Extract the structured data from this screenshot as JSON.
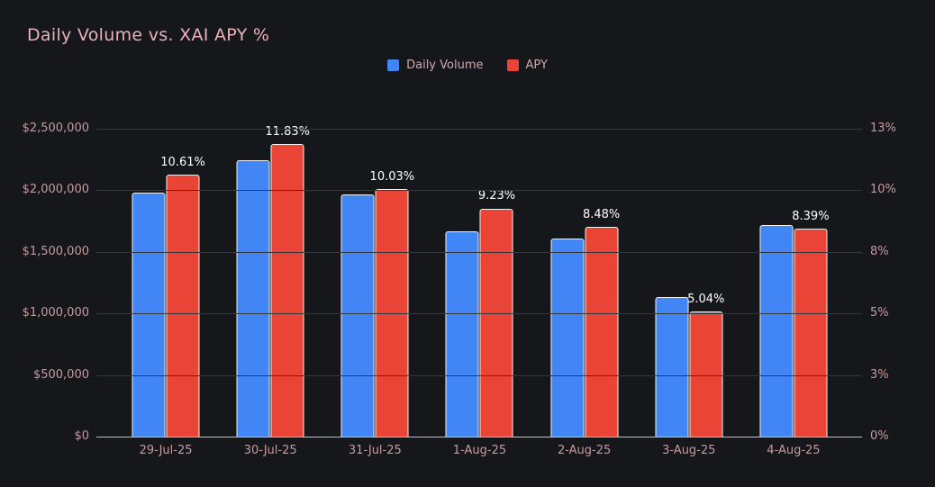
{
  "chart_data": {
    "type": "bar",
    "title": "Daily Volume vs. XAI APY %",
    "categories": [
      "29-Jul-25",
      "30-Jul-25",
      "31-Jul-25",
      "1-Aug-25",
      "2-Aug-25",
      "3-Aug-25",
      "4-Aug-25"
    ],
    "series": [
      {
        "name": "Daily Volume",
        "axis": "left",
        "color": "#4285f4",
        "values": [
          1975000,
          2235000,
          1960000,
          1660000,
          1600000,
          1125000,
          1710000
        ]
      },
      {
        "name": "APY",
        "axis": "right",
        "color": "#e94435",
        "values": [
          10.61,
          11.83,
          10.03,
          9.23,
          8.48,
          5.04,
          8.39
        ],
        "data_labels": [
          "10.61%",
          "11.83%",
          "10.03%",
          "9.23%",
          "8.48%",
          "5.04%",
          "8.39%"
        ]
      }
    ],
    "left_axis": {
      "min": 0,
      "max": 2500000,
      "tick_labels_bottom_to_top": [
        "$0",
        "$500,000",
        "$1,000,000",
        "$1,500,000",
        "$2,000,000",
        "$2,500,000"
      ]
    },
    "right_axis": {
      "min": 0,
      "max": 12.5,
      "tick_labels_bottom_to_top": [
        "0%",
        "3%",
        "5%",
        "8%",
        "10%",
        "13%"
      ]
    },
    "grid": true,
    "legend_position": "top-center",
    "colors": {
      "background": "#16171a",
      "title_text": "#e7b2b8",
      "axis_label_text": "#c49ba1",
      "grid_line": "#36373c",
      "axis_line": "#c2c2c6",
      "data_label_text": "#ffffff",
      "bar_border": "#f2f2f2",
      "volume_bar": "#4285f4",
      "apy_bar": "#e94435"
    }
  }
}
